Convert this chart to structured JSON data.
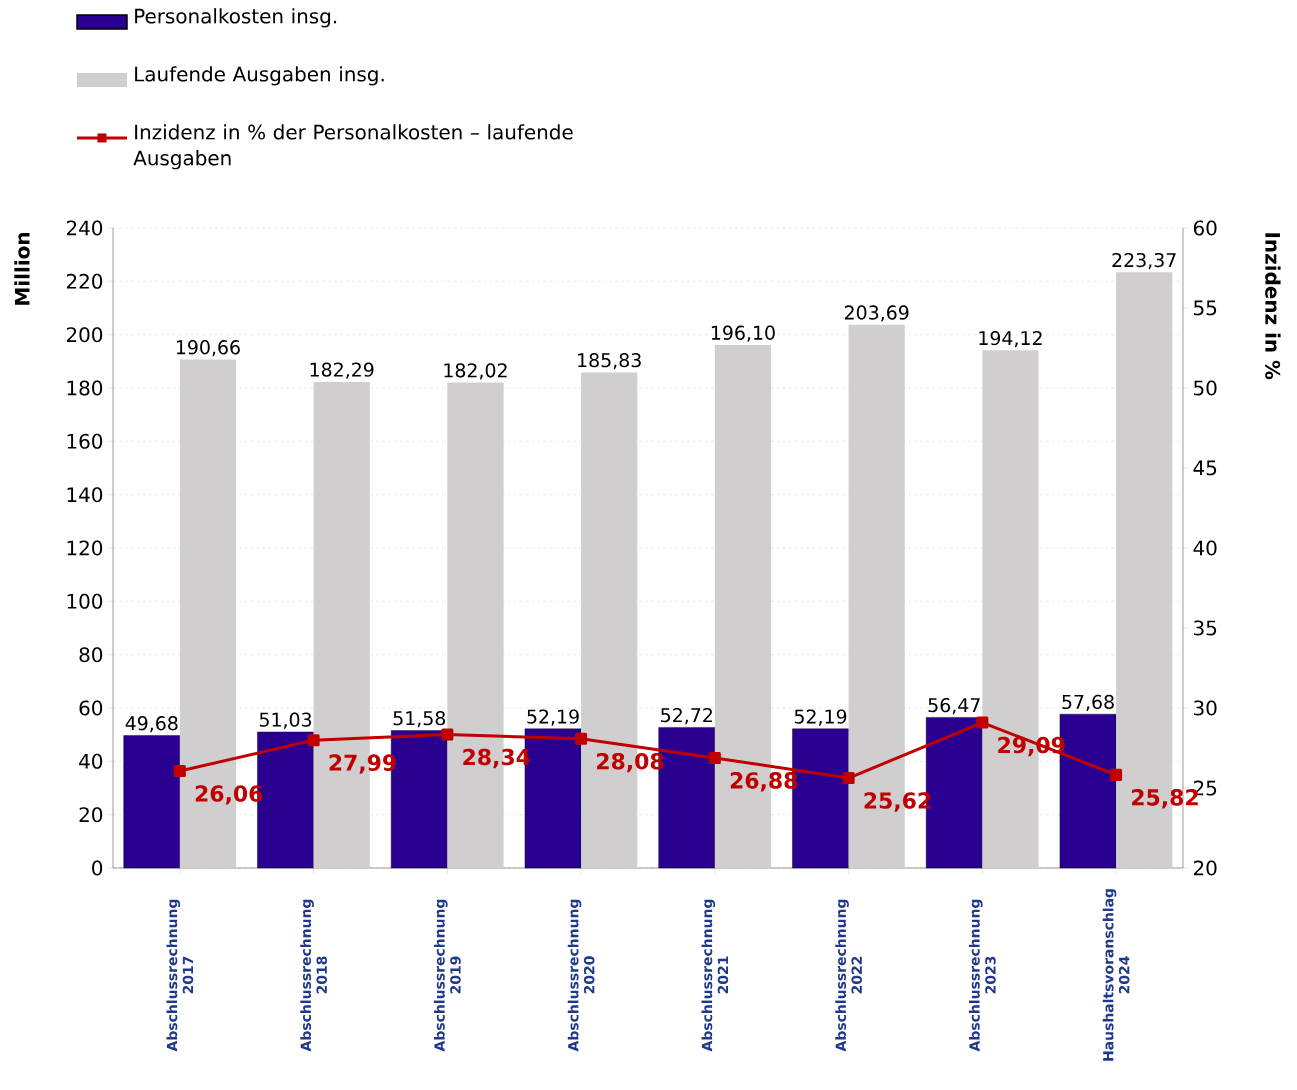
{
  "chart_data": {
    "type": "bar",
    "categories": [
      "Abschlussrechnung 2017",
      "Abschlussrechnung 2018",
      "Abschlussrechnung 2019",
      "Abschlussrechnung 2020",
      "Abschlussrechnung 2021",
      "Abschlussrechnung 2022",
      "Abschlussrechnung 2023",
      "Haushaltsvoranschlag 2024"
    ],
    "series": [
      {
        "name": "Personalkosten insg.",
        "color": "#2a0090",
        "values": [
          49.68,
          51.03,
          51.58,
          52.19,
          52.72,
          52.19,
          56.47,
          57.68
        ],
        "value_labels": [
          "49,68",
          "51,03",
          "51,58",
          "52,19",
          "52,72",
          "52,19",
          "56,47",
          "57,68"
        ]
      },
      {
        "name": "Laufende Ausgaben insg.",
        "color": "#d0cecf",
        "values": [
          190.66,
          182.29,
          182.02,
          185.83,
          196.1,
          203.69,
          194.12,
          223.37
        ],
        "value_labels": [
          "190,66",
          "182,29",
          "182,02",
          "185,83",
          "196,10",
          "203,69",
          "194,12",
          "223,37"
        ]
      },
      {
        "name": "Inzidenz in % der Personalkosten – laufende Ausgaben",
        "type": "line",
        "axis": "y2",
        "color": "#c00000",
        "marker": "square",
        "values": [
          26.06,
          27.99,
          28.34,
          28.08,
          26.88,
          25.62,
          29.09,
          25.82
        ],
        "value_labels": [
          "26,06",
          "27,99",
          "28,34",
          "28,08",
          "26,88",
          "25,62",
          "29,09",
          "25,82"
        ]
      }
    ],
    "ylabel": "Million",
    "y2label": "Inzidenz in %",
    "ylim": [
      0,
      240
    ],
    "yticks": [
      0,
      20,
      40,
      60,
      80,
      100,
      120,
      140,
      160,
      180,
      200,
      220,
      240
    ],
    "y2lim": [
      20,
      60
    ],
    "y2ticks": [
      20,
      25,
      30,
      35,
      40,
      45,
      50,
      55,
      60
    ],
    "grid": "y",
    "legend": "top left"
  }
}
